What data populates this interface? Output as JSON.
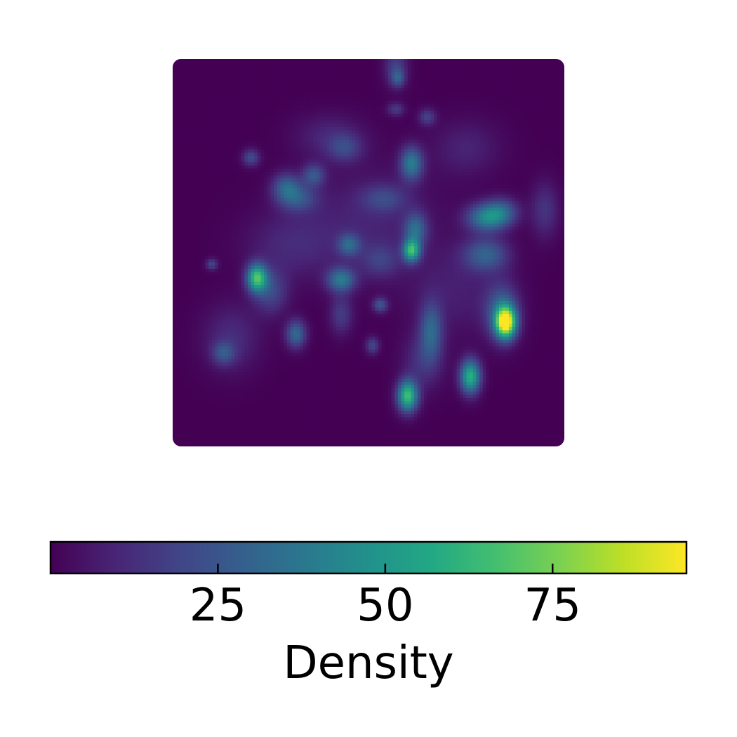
{
  "chart_data": {
    "type": "heatmap",
    "title": "",
    "xlabel": "",
    "ylabel": "",
    "grid": false,
    "colormap": "viridis",
    "colorbar": {
      "label": "Density",
      "orientation": "horizontal",
      "placement": "bottom",
      "range": [
        0,
        95
      ],
      "ticks": [
        25,
        50,
        75
      ],
      "tick_labels": [
        "25",
        "50",
        "75"
      ]
    },
    "value_range": [
      0,
      95
    ],
    "background_value": 0,
    "hotspots": [
      {
        "cx": 0.57,
        "cy": 0.02,
        "sx": 0.02,
        "sy": 0.035,
        "v": 18
      },
      {
        "cx": 0.575,
        "cy": 0.05,
        "sx": 0.012,
        "sy": 0.015,
        "v": 20
      },
      {
        "cx": 0.57,
        "cy": 0.13,
        "sx": 0.015,
        "sy": 0.012,
        "v": 16
      },
      {
        "cx": 0.65,
        "cy": 0.15,
        "sx": 0.015,
        "sy": 0.015,
        "v": 18
      },
      {
        "cx": 0.2,
        "cy": 0.255,
        "sx": 0.015,
        "sy": 0.015,
        "v": 22
      },
      {
        "cx": 0.44,
        "cy": 0.23,
        "sx": 0.03,
        "sy": 0.025,
        "v": 16
      },
      {
        "cx": 0.61,
        "cy": 0.27,
        "sx": 0.02,
        "sy": 0.03,
        "v": 38
      },
      {
        "cx": 0.29,
        "cy": 0.33,
        "sx": 0.025,
        "sy": 0.025,
        "v": 26
      },
      {
        "cx": 0.36,
        "cy": 0.3,
        "sx": 0.02,
        "sy": 0.02,
        "v": 24
      },
      {
        "cx": 0.32,
        "cy": 0.36,
        "sx": 0.035,
        "sy": 0.025,
        "v": 22
      },
      {
        "cx": 0.54,
        "cy": 0.36,
        "sx": 0.04,
        "sy": 0.025,
        "v": 16
      },
      {
        "cx": 0.8,
        "cy": 0.41,
        "sx": 0.035,
        "sy": 0.025,
        "v": 38
      },
      {
        "cx": 0.84,
        "cy": 0.395,
        "sx": 0.03,
        "sy": 0.025,
        "v": 26
      },
      {
        "cx": 0.95,
        "cy": 0.39,
        "sx": 0.025,
        "sy": 0.05,
        "v": 14
      },
      {
        "cx": 0.62,
        "cy": 0.44,
        "sx": 0.02,
        "sy": 0.03,
        "v": 30
      },
      {
        "cx": 0.61,
        "cy": 0.495,
        "sx": 0.015,
        "sy": 0.02,
        "v": 58
      },
      {
        "cx": 0.45,
        "cy": 0.48,
        "sx": 0.02,
        "sy": 0.02,
        "v": 26
      },
      {
        "cx": 0.8,
        "cy": 0.505,
        "sx": 0.04,
        "sy": 0.03,
        "v": 28
      },
      {
        "cx": 0.1,
        "cy": 0.53,
        "sx": 0.01,
        "sy": 0.01,
        "v": 20
      },
      {
        "cx": 0.215,
        "cy": 0.565,
        "sx": 0.018,
        "sy": 0.025,
        "v": 62
      },
      {
        "cx": 0.25,
        "cy": 0.6,
        "sx": 0.03,
        "sy": 0.04,
        "v": 20
      },
      {
        "cx": 0.43,
        "cy": 0.57,
        "sx": 0.025,
        "sy": 0.022,
        "v": 36
      },
      {
        "cx": 0.53,
        "cy": 0.52,
        "sx": 0.035,
        "sy": 0.03,
        "v": 14
      },
      {
        "cx": 0.53,
        "cy": 0.635,
        "sx": 0.013,
        "sy": 0.013,
        "v": 24
      },
      {
        "cx": 0.43,
        "cy": 0.66,
        "sx": 0.02,
        "sy": 0.035,
        "v": 16
      },
      {
        "cx": 0.66,
        "cy": 0.7,
        "sx": 0.02,
        "sy": 0.05,
        "v": 28
      },
      {
        "cx": 0.85,
        "cy": 0.68,
        "sx": 0.018,
        "sy": 0.028,
        "v": 93
      },
      {
        "cx": 0.84,
        "cy": 0.65,
        "sx": 0.03,
        "sy": 0.05,
        "v": 28
      },
      {
        "cx": 0.315,
        "cy": 0.71,
        "sx": 0.018,
        "sy": 0.025,
        "v": 32
      },
      {
        "cx": 0.51,
        "cy": 0.74,
        "sx": 0.012,
        "sy": 0.015,
        "v": 20
      },
      {
        "cx": 0.13,
        "cy": 0.76,
        "sx": 0.02,
        "sy": 0.02,
        "v": 20
      },
      {
        "cx": 0.15,
        "cy": 0.72,
        "sx": 0.05,
        "sy": 0.06,
        "v": 12
      },
      {
        "cx": 0.6,
        "cy": 0.87,
        "sx": 0.018,
        "sy": 0.028,
        "v": 65
      },
      {
        "cx": 0.76,
        "cy": 0.82,
        "sx": 0.018,
        "sy": 0.03,
        "v": 60
      },
      {
        "cx": 0.64,
        "cy": 0.78,
        "sx": 0.035,
        "sy": 0.05,
        "v": 14
      },
      {
        "cx": 0.4,
        "cy": 0.2,
        "sx": 0.06,
        "sy": 0.04,
        "v": 10
      },
      {
        "cx": 0.3,
        "cy": 0.48,
        "sx": 0.08,
        "sy": 0.06,
        "v": 10
      },
      {
        "cx": 0.75,
        "cy": 0.23,
        "sx": 0.06,
        "sy": 0.05,
        "v": 9
      },
      {
        "cx": 0.5,
        "cy": 0.42,
        "sx": 0.12,
        "sy": 0.1,
        "v": 9
      },
      {
        "cx": 0.72,
        "cy": 0.6,
        "sx": 0.08,
        "sy": 0.08,
        "v": 8
      }
    ],
    "grid_resolution": 120
  }
}
